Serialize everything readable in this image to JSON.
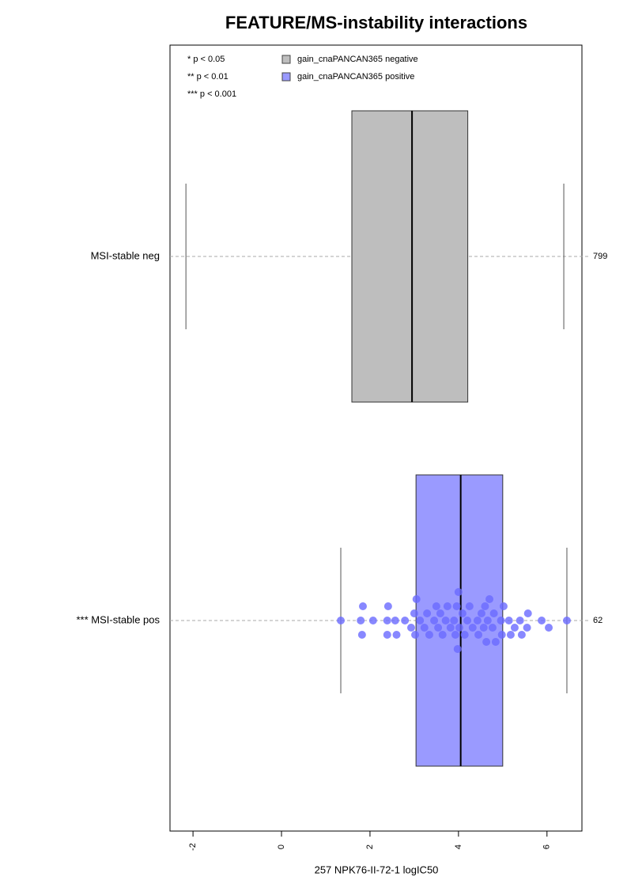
{
  "chart_data": {
    "type": "boxplot",
    "title": "FEATURE/MS-instability interactions",
    "x_label": "257 NPK76-II-72-1 logIC50",
    "notes": [
      "* p < 0.05",
      "** p < 0.01",
      "*** p < 0.001"
    ],
    "xlim": [
      -2.52,
      6.79
    ],
    "xticks": [
      -2,
      0,
      2,
      4,
      6
    ],
    "categories": [
      "MSI-stable neg",
      "*** MSI-stable pos"
    ],
    "series": [
      {
        "name": "gain_cnaPANCAN365 negative",
        "color": "#bebebe",
        "point_color": "#aaaaaa",
        "n": 799,
        "whisker_low": -2.16,
        "q1": 1.59,
        "median": 2.95,
        "q3": 4.21,
        "whisker_high": 6.38
      },
      {
        "name": "gain_cnaPANCAN365 positive",
        "color": "#9a9aff",
        "point_color": "#6a6aff",
        "n": 62,
        "whisker_low": 1.34,
        "q1": 3.04,
        "median": 4.05,
        "q3": 5.0,
        "whisker_high": 6.45,
        "points": [
          1.34,
          1.79,
          1.84,
          1.82,
          2.07,
          2.39,
          2.41,
          2.39,
          2.57,
          2.79,
          2.93,
          3.02,
          3.0,
          3.13,
          3.23,
          3.29,
          3.34,
          3.45,
          3.54,
          3.59,
          3.64,
          3.71,
          3.75,
          3.82,
          3.93,
          3.96,
          3.98,
          4.02,
          4.09,
          4.14,
          4.25,
          4.32,
          4.43,
          4.52,
          4.57,
          4.63,
          4.66,
          4.77,
          4.8,
          4.84,
          4.96,
          4.98,
          5.02,
          5.14,
          5.18,
          5.27,
          5.39,
          5.43,
          5.55,
          5.57,
          5.88,
          6.04,
          6.45,
          3.05,
          3.5,
          3.9,
          4.0,
          4.2,
          4.45,
          4.6,
          4.7,
          2.6
        ]
      }
    ]
  }
}
